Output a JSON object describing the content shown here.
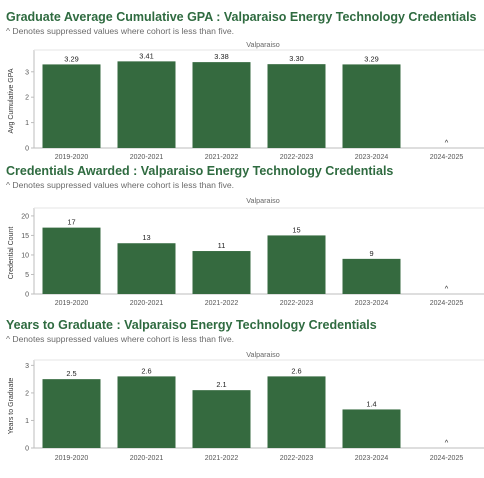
{
  "colors": {
    "title": "#2f6b40",
    "bar": "#356a3f",
    "axis": "#bdbdbd",
    "grid": "#e6e6e6"
  },
  "chart_data": [
    {
      "type": "bar",
      "title": "Graduate Average Cumulative GPA : Valparaiso Energy Technology Credentials",
      "subtitle": "^ Denotes suppressed values where cohort is less than five.",
      "facet": "Valparaiso",
      "ylabel": "Avg Cumulative GPA",
      "xlabel": "",
      "categories": [
        "2019-2020",
        "2020-2021",
        "2021-2022",
        "2022-2023",
        "2023-2024",
        "2024-2025"
      ],
      "values": [
        3.29,
        3.41,
        3.38,
        3.3,
        3.29,
        null
      ],
      "labels": [
        "3.29",
        "3.41",
        "3.38",
        "3.30",
        "3.29",
        "^"
      ],
      "ylim": [
        0,
        3.7
      ],
      "yticks": [
        0,
        1,
        2,
        3
      ],
      "grid": false
    },
    {
      "type": "bar",
      "title": "Credentials Awarded : Valparaiso Energy Technology Credentials",
      "subtitle": "^ Denotes suppressed values where cohort is less than five.",
      "facet": "Valparaiso",
      "ylabel": "Credential Count",
      "xlabel": "",
      "categories": [
        "2019-2020",
        "2020-2021",
        "2021-2022",
        "2022-2023",
        "2023-2024",
        "2024-2025"
      ],
      "values": [
        17,
        13,
        11,
        15,
        9,
        null
      ],
      "labels": [
        "17",
        "13",
        "11",
        "15",
        "9",
        "^"
      ],
      "ylim": [
        0,
        21
      ],
      "yticks": [
        0,
        5,
        10,
        15,
        20
      ],
      "grid": false
    },
    {
      "type": "bar",
      "title": "Years to Graduate : Valparaiso Energy Technology Credentials",
      "subtitle": "^ Denotes suppressed values where cohort is less than five.",
      "facet": "Valparaiso",
      "ylabel": "Years to Graduate",
      "xlabel": "",
      "categories": [
        "2019-2020",
        "2020-2021",
        "2021-2022",
        "2022-2023",
        "2023-2024",
        "2024-2025"
      ],
      "values": [
        2.5,
        2.6,
        2.1,
        2.6,
        1.4,
        null
      ],
      "labels": [
        "2.5",
        "2.6",
        "2.1",
        "2.6",
        "1.4",
        "^"
      ],
      "ylim": [
        0,
        3.05
      ],
      "yticks": [
        0,
        1,
        2,
        3
      ],
      "grid": false
    }
  ]
}
